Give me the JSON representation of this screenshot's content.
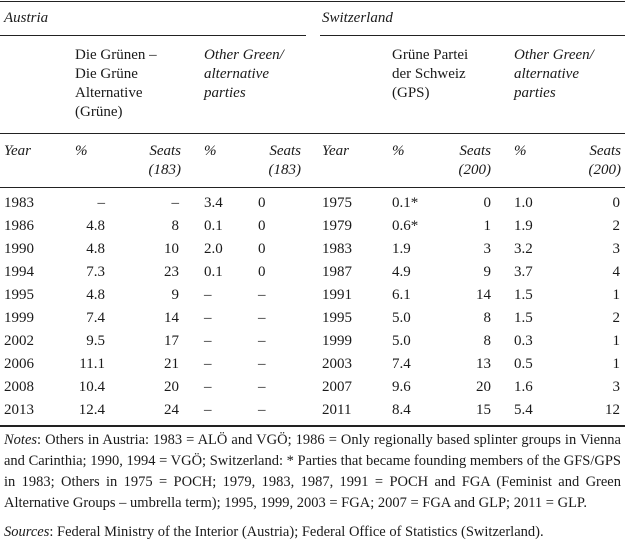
{
  "table": {
    "groups": [
      {
        "name": "Austria",
        "party": "Die Grünen –\nDie Grüne\nAlternative\n(Grüne)",
        "other": "Other Green/\nalternative\nparties"
      },
      {
        "name": "Switzerland",
        "party": "Grüne Partei\nder Schweiz\n(GPS)",
        "other": "Other Green/\nalternative\nparties"
      }
    ],
    "col_headers": {
      "year": "Year",
      "pct": "%",
      "seats_austria": "Seats\n(183)",
      "seats_switzerland": "Seats\n(200)"
    },
    "rows": [
      {
        "a": [
          "1983",
          "–",
          "–",
          "3.4",
          "0"
        ],
        "s": [
          "1975",
          "0.1*",
          "0",
          "1.0",
          "0"
        ]
      },
      {
        "a": [
          "1986",
          "4.8",
          "8",
          "0.1",
          "0"
        ],
        "s": [
          "1979",
          "0.6*",
          "1",
          "1.9",
          "2"
        ]
      },
      {
        "a": [
          "1990",
          "4.8",
          "10",
          "2.0",
          "0"
        ],
        "s": [
          "1983",
          "1.9",
          "3",
          "3.2",
          "3"
        ]
      },
      {
        "a": [
          "1994",
          "7.3",
          "23",
          "0.1",
          "0"
        ],
        "s": [
          "1987",
          "4.9",
          "9",
          "3.7",
          "4"
        ]
      },
      {
        "a": [
          "1995",
          "4.8",
          "9",
          "–",
          "–"
        ],
        "s": [
          "1991",
          "6.1",
          "14",
          "1.5",
          "1"
        ]
      },
      {
        "a": [
          "1999",
          "7.4",
          "14",
          "–",
          "–"
        ],
        "s": [
          "1995",
          "5.0",
          "8",
          "1.5",
          "2"
        ]
      },
      {
        "a": [
          "2002",
          "9.5",
          "17",
          "–",
          "–"
        ],
        "s": [
          "1999",
          "5.0",
          "8",
          "0.3",
          "1"
        ]
      },
      {
        "a": [
          "2006",
          "11.1",
          "21",
          "–",
          "–"
        ],
        "s": [
          "2003",
          "7.4",
          "13",
          "0.5",
          "1"
        ]
      },
      {
        "a": [
          "2008",
          "10.4",
          "20",
          "–",
          "–"
        ],
        "s": [
          "2007",
          "9.6",
          "20",
          "1.6",
          "3"
        ]
      },
      {
        "a": [
          "2013",
          "12.4",
          "24",
          "–",
          "–"
        ],
        "s": [
          "2011",
          "8.4",
          "15",
          "5.4",
          "12"
        ]
      }
    ]
  },
  "notes": {
    "label": "Notes",
    "text": ": Others in Austria: 1983 = ALÖ and VGÖ; 1986 = Only regionally based splinter groups in Vienna and Carinthia; 1990, 1994 = VGÖ; Switzerland: * Parties that became founding members of the GFS/GPS in 1983; Others in 1975 = POCH; 1979, 1983, 1987, 1991 = POCH and FGA (Feminist and Green Alternative Groups – umbrella term); 1995, 1999, 2003 = FGA; 2007 = FGA and GLP; 2011 = GLP."
  },
  "sources": {
    "label": "Sources",
    "text": ": Federal Ministry of the Interior (Austria); Federal Office of Statistics (Switzerland)."
  }
}
